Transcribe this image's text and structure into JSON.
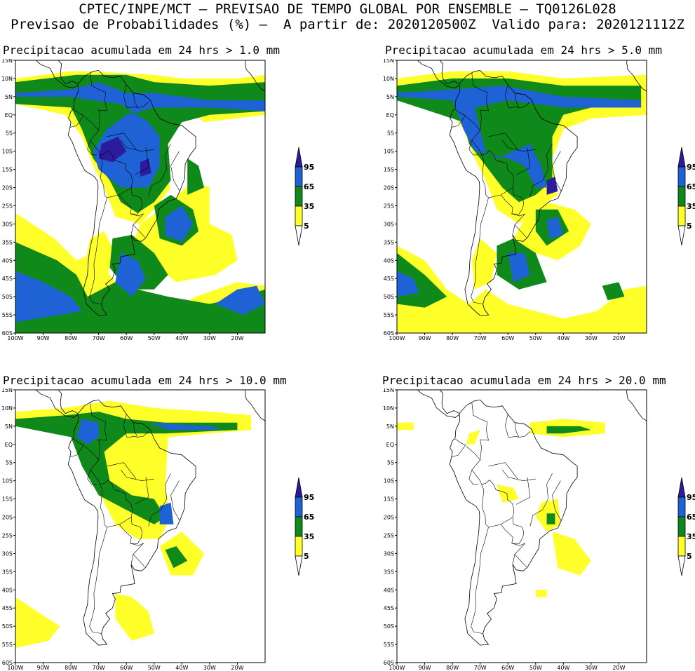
{
  "header": {
    "line1": "CPTEC/INPE/MCT – PREVISAO DE TEMPO GLOBAL POR ENSEMBLE – TQ0126L028",
    "line2": "Previsao de Probabilidades (%) –  A partir de: 2020120500Z  Valido para: 2020121112Z"
  },
  "colors": {
    "yellow": "#ffff2a",
    "green": "#0f8a1a",
    "blue": "#1e62d6",
    "darkblue": "#2d1b9e",
    "coast": "#000000"
  },
  "lat_labels": [
    "15N",
    "10N",
    "5N",
    "EQ",
    "5S",
    "10S",
    "15S",
    "20S",
    "25S",
    "30S",
    "35S",
    "40S",
    "45S",
    "50S",
    "55S",
    "60S"
  ],
  "lon_labels": [
    "100W",
    "90W",
    "80W",
    "70W",
    "60W",
    "50W",
    "40W",
    "30W",
    "20W"
  ],
  "legend": {
    "labels": [
      "95",
      "65",
      "35",
      "5"
    ]
  },
  "panels": [
    {
      "title": "Precipitacao acumulada em 24 hrs > 1.0 mm"
    },
    {
      "title": "Precipitacao acumulada em 24 hrs > 5.0 mm"
    },
    {
      "title": "Precipitacao acumulada em 24 hrs > 10.0 mm"
    },
    {
      "title": "Precipitacao acumulada em 24 hrs > 20.0 mm"
    }
  ]
}
